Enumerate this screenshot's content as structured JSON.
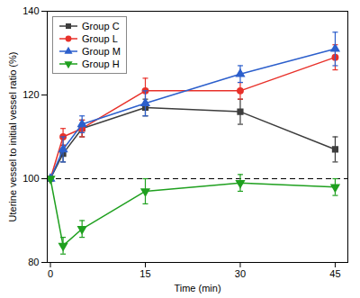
{
  "chart_data": {
    "type": "line",
    "x": [
      0,
      2,
      5,
      15,
      30,
      45
    ],
    "series": [
      {
        "name": "Group C",
        "color": "#3d3d3d",
        "marker": "square",
        "line_style": "solid",
        "values": [
          100,
          106,
          112,
          117,
          116,
          107
        ],
        "errors": [
          0,
          2,
          2,
          2,
          3,
          3
        ]
      },
      {
        "name": "Group L",
        "color": "#e8312a",
        "marker": "circle",
        "line_style": "solid",
        "values": [
          100,
          110,
          112,
          121,
          121,
          129
        ],
        "errors": [
          0,
          2,
          2,
          3,
          2,
          3
        ]
      },
      {
        "name": "Group M",
        "color": "#2c5fcc",
        "marker": "triangle-up",
        "line_style": "solid",
        "values": [
          100,
          107,
          113,
          118,
          125,
          131
        ],
        "errors": [
          0,
          3,
          2,
          3,
          2,
          4
        ]
      },
      {
        "name": "Group H",
        "color": "#1fa01f",
        "marker": "triangle-down",
        "line_style": "solid",
        "values": [
          100,
          84,
          88,
          97,
          99,
          98
        ],
        "errors": [
          0,
          2,
          2,
          3,
          2,
          2
        ]
      }
    ],
    "xlabel": "Time (min)",
    "ylabel": "Uterine vessel to initial vessel ratio (%)",
    "xlim": [
      -0.5,
      47
    ],
    "ylim": [
      80,
      140
    ],
    "xticks": [
      0,
      15,
      30,
      45
    ],
    "yticks": [
      80,
      100,
      120,
      140
    ],
    "reference_lines": [
      {
        "y": 100,
        "line_style": "dashed",
        "color": "black"
      }
    ],
    "grid": false,
    "legend": "upper left"
  }
}
